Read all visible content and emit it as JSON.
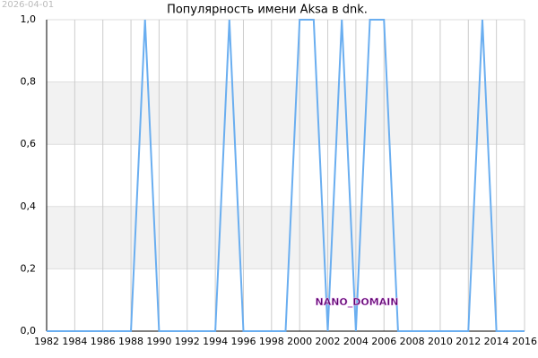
{
  "stamp": "2026-04-01",
  "chart_data": {
    "type": "line",
    "title": "Популярность имени Aksa в dnk.",
    "x": [
      1982,
      1983,
      1984,
      1985,
      1986,
      1987,
      1988,
      1989,
      1990,
      1991,
      1992,
      1993,
      1994,
      1995,
      1996,
      1997,
      1998,
      1999,
      2000,
      2001,
      2002,
      2003,
      2004,
      2005,
      2006,
      2007,
      2008,
      2009,
      2010,
      2011,
      2012,
      2013,
      2014,
      2015,
      2016
    ],
    "series": [
      {
        "name": null,
        "color": "#6aaef0",
        "values": [
          0,
          0,
          0,
          0,
          0,
          0,
          0,
          1,
          0,
          0,
          0,
          0,
          0,
          1,
          0,
          0,
          0,
          0,
          1,
          1,
          0,
          1,
          0,
          1,
          1,
          0,
          0,
          0,
          0,
          0,
          0,
          1,
          0,
          0,
          0
        ]
      }
    ],
    "xlim": [
      1982,
      2016
    ],
    "xticks": [
      1982,
      1984,
      1986,
      1988,
      1990,
      1992,
      1994,
      1996,
      1998,
      2000,
      2002,
      2004,
      2006,
      2008,
      2010,
      2012,
      2014,
      2016
    ],
    "ylim": [
      0,
      1
    ],
    "yticks": [
      {
        "value": 0,
        "label": "0,0"
      },
      {
        "value": 0.2,
        "label": "0,2"
      },
      {
        "value": 0.4,
        "label": "0,4"
      },
      {
        "value": 0.6,
        "label": "0,6"
      },
      {
        "value": 0.8,
        "label": "0,8"
      },
      {
        "value": 1,
        "label": "1,0"
      }
    ],
    "grid": true,
    "annotation": "NANO_DOMAIN"
  }
}
